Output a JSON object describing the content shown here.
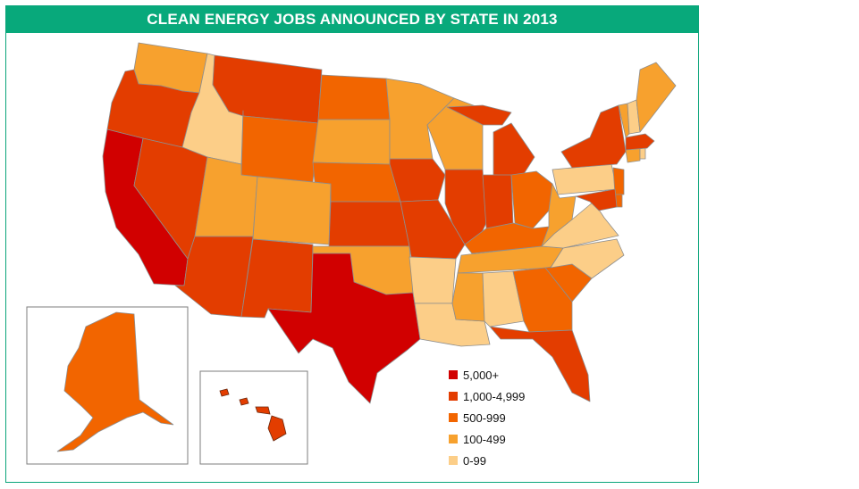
{
  "title": "CLEAN ENERGY JOBS ANNOUNCED BY STATE IN 2013",
  "colors": {
    "5000plus": "#d10000",
    "1000_4999": "#e33d00",
    "500_999": "#f26500",
    "100_499": "#f7a12e",
    "0_99": "#fcce88",
    "border": "#8e8e8e",
    "title_bg": "#08a97b"
  },
  "legend": [
    {
      "label": "5,000+",
      "color": "#d10000"
    },
    {
      "label": "1,000-4,999",
      "color": "#e33d00"
    },
    {
      "label": "500-999",
      "color": "#f26500"
    },
    {
      "label": "100-499",
      "color": "#f7a12e"
    },
    {
      "label": "0-99",
      "color": "#fcce88"
    }
  ],
  "state_categories": {
    "CA": "5,000+",
    "TX": "5,000+",
    "WA": "100-499",
    "OR": "1,000-4,999",
    "ID": "0-99",
    "NV": "1,000-4,999",
    "MT": "1,000-4,999",
    "WY": "500-999",
    "UT": "100-499",
    "AZ": "1,000-4,999",
    "CO": "100-499",
    "NM": "1,000-4,999",
    "ND": "500-999",
    "SD": "100-499",
    "NE": "500-999",
    "KS": "1,000-4,999",
    "OK": "100-499",
    "MN": "100-499",
    "IA": "1,000-4,999",
    "MO": "1,000-4,999",
    "AR": "0-99",
    "LA": "0-99",
    "WI": "100-499",
    "IL": "1,000-4,999",
    "MI": "1,000-4,999",
    "IN": "1,000-4,999",
    "OH": "500-999",
    "KY": "500-999",
    "TN": "100-499",
    "MS": "100-499",
    "AL": "0-99",
    "GA": "500-999",
    "FL": "1,000-4,999",
    "SC": "500-999",
    "NC": "0-99",
    "VA": "0-99",
    "WV": "100-499",
    "PA": "0-99",
    "NY": "1,000-4,999",
    "NJ": "500-999",
    "MD": "1,000-4,999",
    "DE": "500-999",
    "CT": "100-499",
    "RI": "0-99",
    "MA": "1,000-4,999",
    "VT": "100-499",
    "NH": "0-99",
    "ME": "100-499",
    "AK": "500-999",
    "HI": "1,000-4,999"
  }
}
